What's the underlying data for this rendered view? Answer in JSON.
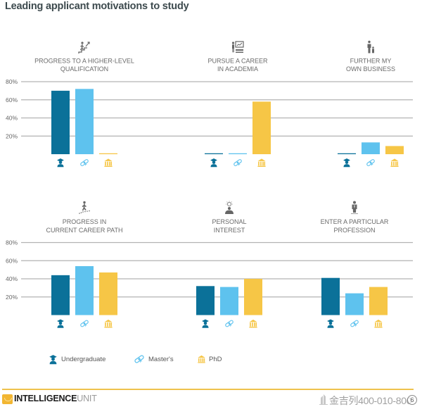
{
  "chart_data": {
    "type": "bar",
    "title": "Leading applicant motivations to study",
    "xlabel": "",
    "ylabel": "",
    "ylim": [
      0,
      80
    ],
    "yticks": [
      20,
      40,
      60,
      80
    ],
    "ytick_labels": [
      "20%",
      "40%",
      "60%",
      "80%"
    ],
    "grid": true,
    "legend_position": "bottom-left",
    "layout": "small-multiples 2x3",
    "categories": [
      "Progress to a higher-level qualification",
      "Pursue a career in academia",
      "Further my own business",
      "Progress in current career path",
      "Personal interest",
      "Enter a particular profession"
    ],
    "panels": [
      {
        "id": "higher-level-qualification",
        "icon": "climbing-stairs-icon",
        "title_lines": [
          "PROGRESS TO A HIGHER-LEVEL",
          "QUALIFICATION"
        ]
      },
      {
        "id": "career-in-academia",
        "icon": "presenter-board-icon",
        "title_lines": [
          "PURSUE A CAREER",
          "IN ACADEMIA"
        ]
      },
      {
        "id": "own-business",
        "icon": "parent-child-icon",
        "title_lines": [
          "FURTHER MY",
          "OWN BUSINESS"
        ]
      },
      {
        "id": "current-career-path",
        "icon": "walking-steps-icon",
        "title_lines": [
          "PROGRESS IN",
          "CURRENT CAREER PATH"
        ]
      },
      {
        "id": "personal-interest",
        "icon": "lightbulb-person-icon",
        "title_lines": [
          "PERSONAL",
          "INTEREST"
        ]
      },
      {
        "id": "particular-profession",
        "icon": "businessman-icon",
        "title_lines": [
          "ENTER A PARTICULAR",
          "PROFESSION"
        ]
      }
    ],
    "series": [
      {
        "key": "undergraduate",
        "name": "Undergraduate",
        "icon": "graduate-icon",
        "color": "#0b7199",
        "values": [
          70,
          1,
          1,
          44,
          32,
          41
        ]
      },
      {
        "key": "masters",
        "name": "Master's",
        "icon": "diploma-icon",
        "color": "#5ec2ee",
        "values": [
          72,
          1,
          13,
          54,
          31,
          24
        ]
      },
      {
        "key": "phd",
        "name": "PhD",
        "icon": "institution-icon",
        "color": "#f6c646",
        "values": [
          1,
          58,
          9,
          47,
          40,
          31
        ]
      }
    ]
  },
  "footer": {
    "brand_bold": "INTELLIGENCE",
    "brand_light": "UNIT",
    "watermark": "金吉列400-010-800",
    "page_number": "6",
    "accent_color": "#efc24d"
  }
}
